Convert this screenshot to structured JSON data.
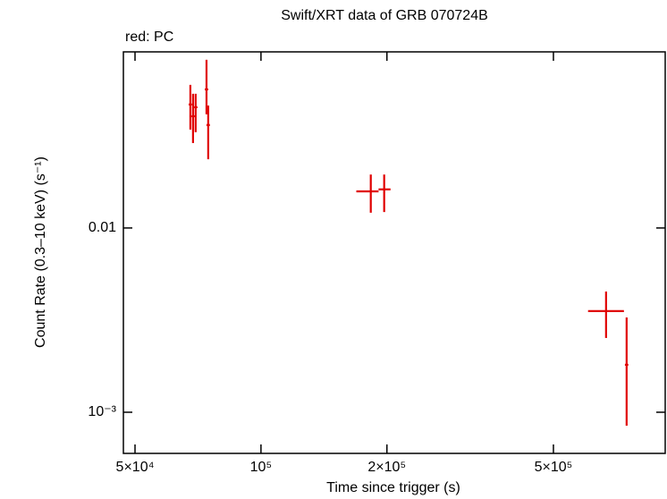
{
  "chart_data": {
    "type": "errorbar-scatter",
    "title": "Swift/XRT data of GRB 070724B",
    "subtitle": "red: PC",
    "x_label": "Time since trigger (s)",
    "y_label": "Count Rate (0.3–10 keV) (s⁻¹)",
    "x_log": true,
    "y_log": true,
    "xlim": [
      46900,
      925000
    ],
    "ylim": [
      0.000598,
      0.0903
    ],
    "xticks": [
      {
        "value": 50000,
        "label": "5×10⁴"
      },
      {
        "value": 100000,
        "label": "10⁵"
      },
      {
        "value": 200000,
        "label": "2×10⁵"
      },
      {
        "value": 500000,
        "label": "5×10⁵"
      }
    ],
    "yticks": [
      {
        "value": 0.01,
        "label": "0.01"
      },
      {
        "value": 0.001,
        "label": "10⁻³"
      }
    ],
    "color": "#e00000",
    "x": [
      67800,
      68800,
      69800,
      74100,
      74800,
      183000,
      197000,
      668000,
      748000
    ],
    "x_min": [
      67200,
      68200,
      69200,
      73400,
      74100,
      169000,
      191000,
      605000,
      741000
    ],
    "x_max": [
      68400,
      69500,
      70500,
      74800,
      75500,
      191000,
      204000,
      737000,
      755000
    ],
    "values": [
      0.0468,
      0.0404,
      0.0452,
      0.0565,
      0.0362,
      0.0158,
      0.0162,
      0.00354,
      0.00181
    ],
    "y_min": [
      0.0342,
      0.0289,
      0.0331,
      0.0414,
      0.0236,
      0.0121,
      0.0122,
      0.00253,
      0.000846
    ],
    "y_max": [
      0.0598,
      0.0535,
      0.0535,
      0.0818,
      0.0462,
      0.0195,
      0.0195,
      0.00452,
      0.00327
    ]
  }
}
